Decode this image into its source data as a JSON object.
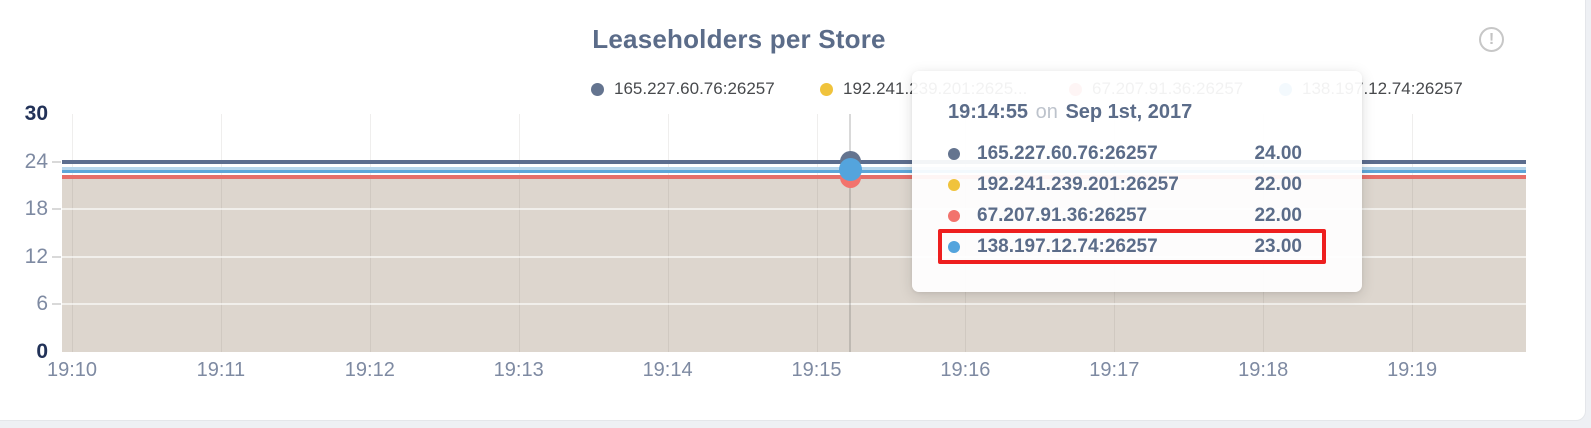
{
  "panel": {
    "title": "Leaseholders per Store"
  },
  "icons": {
    "info_glyph": "!"
  },
  "legend": {
    "items": [
      {
        "label": "165.227.60.76:26257",
        "color": "#64748f"
      },
      {
        "label": "192.241.239.201:2625...",
        "color": "#f0c33c"
      },
      {
        "label": "67.207.91.36:26257",
        "color": "#f2736d"
      },
      {
        "label": "138.197.12.74:26257",
        "color": "#54a4dd"
      }
    ]
  },
  "tooltip": {
    "time": "19:14:55",
    "connector": "on",
    "date": "Sep 1st, 2017",
    "highlight_color": "#ee1f1f",
    "rows": [
      {
        "label": "165.227.60.76:26257",
        "value": "24.00",
        "color": "#64748f",
        "highlighted": false
      },
      {
        "label": "192.241.239.201:26257",
        "value": "22.00",
        "color": "#f0c33c",
        "highlighted": false
      },
      {
        "label": "67.207.91.36:26257",
        "value": "22.00",
        "color": "#f2736d",
        "highlighted": false
      },
      {
        "label": "138.197.12.74:26257",
        "value": "23.00",
        "color": "#54a4dd",
        "highlighted": true
      }
    ]
  },
  "chart_data": {
    "type": "area",
    "title": "Leaseholders per Store",
    "x": [
      "19:10",
      "19:11",
      "19:12",
      "19:13",
      "19:14",
      "19:15",
      "19:16",
      "19:17",
      "19:18",
      "19:19"
    ],
    "series": [
      {
        "name": "165.227.60.76:26257",
        "color": "#64748f",
        "line_color": "#5c6d8e",
        "values": [
          24,
          24,
          24,
          24,
          24,
          24,
          24,
          24,
          24,
          24
        ]
      },
      {
        "name": "192.241.239.201:26257",
        "color": "#f0c33c",
        "line_color": "#eebe38",
        "values": [
          22,
          22,
          22,
          22,
          22,
          22,
          22,
          22,
          22,
          22
        ]
      },
      {
        "name": "67.207.91.36:26257",
        "color": "#f2736d",
        "line_color": "#e66f69",
        "values": [
          22,
          22,
          22,
          22,
          22,
          22,
          22,
          22,
          22,
          22
        ]
      },
      {
        "name": "138.197.12.74:26257",
        "color": "#54a4dd",
        "line_color": "#5ea6d8",
        "values": [
          23,
          23,
          23,
          23,
          23,
          23,
          23,
          23,
          23,
          23
        ]
      }
    ],
    "ylim": [
      0,
      30
    ],
    "yticks": [
      0,
      6,
      12,
      18,
      24,
      30
    ],
    "xlabel": "",
    "ylabel": "",
    "grid": true,
    "legend_position": "top",
    "area_fill_color": "#ddd6ce",
    "hover": {
      "x": "19:15",
      "time": "19:14:55",
      "date": "Sep 1st, 2017"
    }
  }
}
